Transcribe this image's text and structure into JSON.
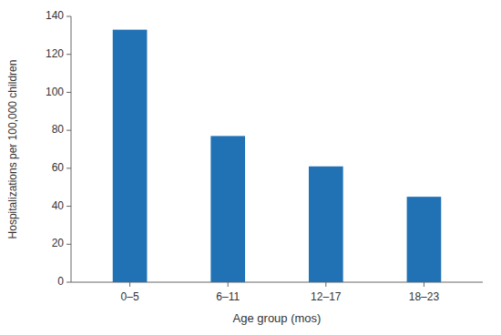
{
  "chart_data": {
    "type": "bar",
    "categories": [
      "0–5",
      "6–11",
      "12–17",
      "18–23"
    ],
    "values": [
      133,
      77,
      61,
      45
    ],
    "color": "#2171b5",
    "xlabel": "Age group (mos)",
    "ylabel": "Hospitalizations per 100,000 children",
    "ylim": [
      0,
      140
    ],
    "yticks": [
      0,
      20,
      40,
      60,
      80,
      100,
      120,
      140
    ],
    "grid": false
  }
}
